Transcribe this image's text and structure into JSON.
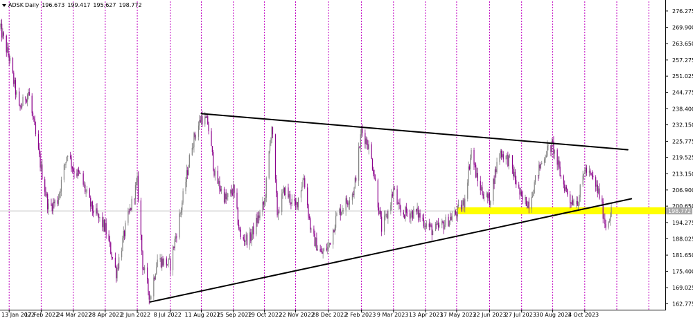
{
  "chart_info": {
    "symbol": "ADSK",
    "timeframe": "Daily",
    "open": "196.673",
    "high": "199.417",
    "low": "195.627",
    "close": "198.772"
  },
  "price_tag": "198.772",
  "colors": {
    "bull": "#808080",
    "bear": "#8b008b",
    "grid": "#c000c0",
    "zone": "#ffff00",
    "trend": "#000000"
  },
  "chart_data": {
    "type": "candlestick",
    "instrument": "ADSK",
    "period": "Daily",
    "y_ticks": [
      "276.275",
      "269.900",
      "263.650",
      "257.275",
      "251.025",
      "244.775",
      "238.400",
      "232.150",
      "225.775",
      "219.525",
      "213.150",
      "206.900",
      "200.650",
      "194.275",
      "188.025",
      "181.650",
      "175.400",
      "169.025",
      "162.775"
    ],
    "ylim": [
      160.5,
      280
    ],
    "x_tick_labels": [
      "13 Jan 2022",
      "17 Feb 2022",
      "24 Mar 2022",
      "28 Apr 2022",
      "2 Jun 2022",
      "8 Jul 2022",
      "11 Aug 2022",
      "15 Sep 2022",
      "19 Oct 2022",
      "22 Nov 2022",
      "28 Dec 2022",
      "2 Feb 2023",
      "9 Mar 2023",
      "13 Apr 2023",
      "17 May 2023",
      "22 Jun 2023",
      "27 Jul 2023",
      "30 Aug 2023",
      "4 Oct 2023"
    ],
    "close_series": [
      [
        "2022-01-03",
        270
      ],
      [
        "2022-01-13",
        258
      ],
      [
        "2022-01-24",
        238
      ],
      [
        "2022-02-03",
        245
      ],
      [
        "2022-02-17",
        215
      ],
      [
        "2022-02-25",
        200
      ],
      [
        "2022-03-07",
        203
      ],
      [
        "2022-03-18",
        222
      ],
      [
        "2022-03-24",
        215
      ],
      [
        "2022-04-01",
        212
      ],
      [
        "2022-04-13",
        200
      ],
      [
        "2022-04-28",
        192
      ],
      [
        "2022-05-10",
        175
      ],
      [
        "2022-05-20",
        192
      ],
      [
        "2022-06-02",
        210
      ],
      [
        "2022-06-08",
        178
      ],
      [
        "2022-06-16",
        165
      ],
      [
        "2022-06-24",
        180
      ],
      [
        "2022-07-08",
        178
      ],
      [
        "2022-07-20",
        200
      ],
      [
        "2022-08-01",
        225
      ],
      [
        "2022-08-11",
        235
      ],
      [
        "2022-08-18",
        233
      ],
      [
        "2022-08-26",
        212
      ],
      [
        "2022-09-07",
        203
      ],
      [
        "2022-09-15",
        207
      ],
      [
        "2022-09-23",
        188
      ],
      [
        "2022-10-03",
        188
      ],
      [
        "2022-10-12",
        196
      ],
      [
        "2022-10-19",
        202
      ],
      [
        "2022-10-27",
        232
      ],
      [
        "2022-11-02",
        198
      ],
      [
        "2022-11-10",
        207
      ],
      [
        "2022-11-22",
        200
      ],
      [
        "2022-12-01",
        212
      ],
      [
        "2022-12-09",
        190
      ],
      [
        "2022-12-20",
        182
      ],
      [
        "2022-12-28",
        185
      ],
      [
        "2023-01-06",
        197
      ],
      [
        "2023-01-18",
        203
      ],
      [
        "2023-01-25",
        207
      ],
      [
        "2023-02-02",
        230
      ],
      [
        "2023-02-09",
        225
      ],
      [
        "2023-02-15",
        215
      ],
      [
        "2023-02-24",
        192
      ],
      [
        "2023-03-02",
        197
      ],
      [
        "2023-03-09",
        207
      ],
      [
        "2023-03-16",
        198
      ],
      [
        "2023-03-24",
        198
      ],
      [
        "2023-04-04",
        198
      ],
      [
        "2023-04-13",
        194
      ],
      [
        "2023-04-21",
        191
      ],
      [
        "2023-05-01",
        193
      ],
      [
        "2023-05-10",
        196
      ],
      [
        "2023-05-17",
        198
      ],
      [
        "2023-05-25",
        202
      ],
      [
        "2023-06-02",
        222
      ],
      [
        "2023-06-09",
        210
      ],
      [
        "2023-06-16",
        205
      ],
      [
        "2023-06-22",
        203
      ],
      [
        "2023-07-03",
        222
      ],
      [
        "2023-07-14",
        218
      ],
      [
        "2023-07-21",
        210
      ],
      [
        "2023-07-27",
        203
      ],
      [
        "2023-08-04",
        202
      ],
      [
        "2023-08-14",
        214
      ],
      [
        "2023-08-23",
        222
      ],
      [
        "2023-08-30",
        224
      ],
      [
        "2023-09-08",
        212
      ],
      [
        "2023-09-18",
        203
      ],
      [
        "2023-09-27",
        203
      ],
      [
        "2023-10-04",
        215
      ],
      [
        "2023-10-13",
        211
      ],
      [
        "2023-10-20",
        205
      ],
      [
        "2023-10-27",
        193
      ],
      [
        "2023-11-02",
        198.772
      ]
    ],
    "trendlines": [
      {
        "from": [
          "2022-08-11",
          236.5
        ],
        "to": [
          "2023-11-20",
          222.5
        ]
      },
      {
        "from": [
          "2022-06-16",
          163.5
        ],
        "to": [
          "2023-11-24",
          203.5
        ]
      }
    ],
    "zone": {
      "from": "2023-05-17",
      "to": "2023-12-31",
      "low": 197.5,
      "high": 200.2
    },
    "current_price": 198.772
  }
}
